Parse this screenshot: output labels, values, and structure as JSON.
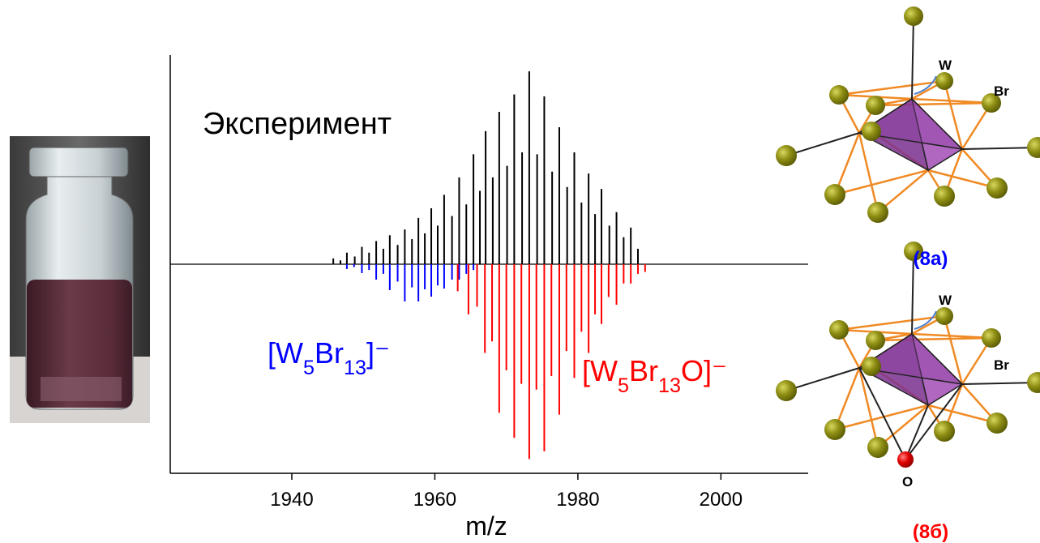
{
  "chart_data": {
    "type": "stem",
    "xlabel": "m/z",
    "xlim": [
      1923,
      2012.2
    ],
    "xticks": [
      1940,
      1960,
      1980,
      2000
    ],
    "ylim": [
      -108.4,
      108.4
    ],
    "series": [
      {
        "name": "Эксперимент",
        "color": "#000000",
        "x": [
          1945.8,
          1946.8,
          1947.7,
          1948.8,
          1949.8,
          1950.8,
          1951.8,
          1952.8,
          1953.7,
          1954.8,
          1955.8,
          1956.8,
          1957.7,
          1958.6,
          1959.5,
          1960.4,
          1961.3,
          1962.4,
          1963.4,
          1964.4,
          1965.4,
          1966.3,
          1967.1,
          1968.1,
          1969.0,
          1970.1,
          1971.1,
          1972.2,
          1973.2,
          1974.3,
          1975.3,
          1976.4,
          1977.4,
          1978.5,
          1979.5,
          1980.5,
          1981.5,
          1982.4,
          1983.3,
          1984.4,
          1985.4,
          1986.4,
          1987.4,
          1988.4
        ],
        "values": [
          3,
          2,
          6,
          4,
          9,
          6,
          12,
          8,
          15,
          10,
          18,
          13,
          24,
          16,
          29,
          20,
          36,
          25,
          45,
          31,
          57,
          38,
          69,
          45,
          79,
          51,
          88,
          58,
          100,
          57,
          87,
          48,
          71,
          40,
          58,
          32,
          47,
          26,
          39,
          20,
          27,
          14,
          19,
          8
        ]
      },
      {
        "name": "[W5Br13]⁻",
        "color": "#0000ff",
        "x": [
          1947.7,
          1948.7,
          1949.8,
          1950.8,
          1951.8,
          1952.8,
          1953.7,
          1954.8,
          1955.8,
          1956.8,
          1957.7,
          1958.6,
          1959.5,
          1960.4,
          1961.3,
          1962.4,
          1963.4,
          1964.4,
          1965.4
        ],
        "values": [
          -2.5,
          -1.5,
          -4.6,
          -3,
          -8,
          -5,
          -13.4,
          -9,
          -19.3,
          -12,
          -19.3,
          -13,
          -16.8,
          -11,
          -12.6,
          -8,
          -8,
          -5,
          -3
        ]
      },
      {
        "name": "[W5Br13O]⁻",
        "color": "#ff0000",
        "x": [
          1963.2,
          1964.7,
          1965.9,
          1967.0,
          1968.0,
          1969.0,
          1970.0,
          1971.1,
          1972.1,
          1973.2,
          1974.2,
          1975.3,
          1976.3,
          1977.4,
          1978.4,
          1979.5,
          1980.5,
          1981.5,
          1982.4,
          1983.3,
          1984.3,
          1985.4,
          1986.4,
          1987.4,
          1988.4,
          1989.4
        ],
        "values": [
          -14,
          -26,
          -22,
          -46,
          -40,
          -77,
          -55,
          -90,
          -62,
          -101,
          -65,
          -97,
          -58,
          -78,
          -45,
          -59,
          -35,
          -46,
          -26,
          -31,
          -17,
          -21,
          -10,
          -10,
          -5,
          -4
        ]
      }
    ]
  },
  "structures": [
    {
      "label": "(8а)",
      "atom_labels": [
        "W",
        "Br"
      ]
    },
    {
      "label": "(8б)",
      "atom_labels": [
        "W",
        "Br",
        "O"
      ]
    }
  ]
}
